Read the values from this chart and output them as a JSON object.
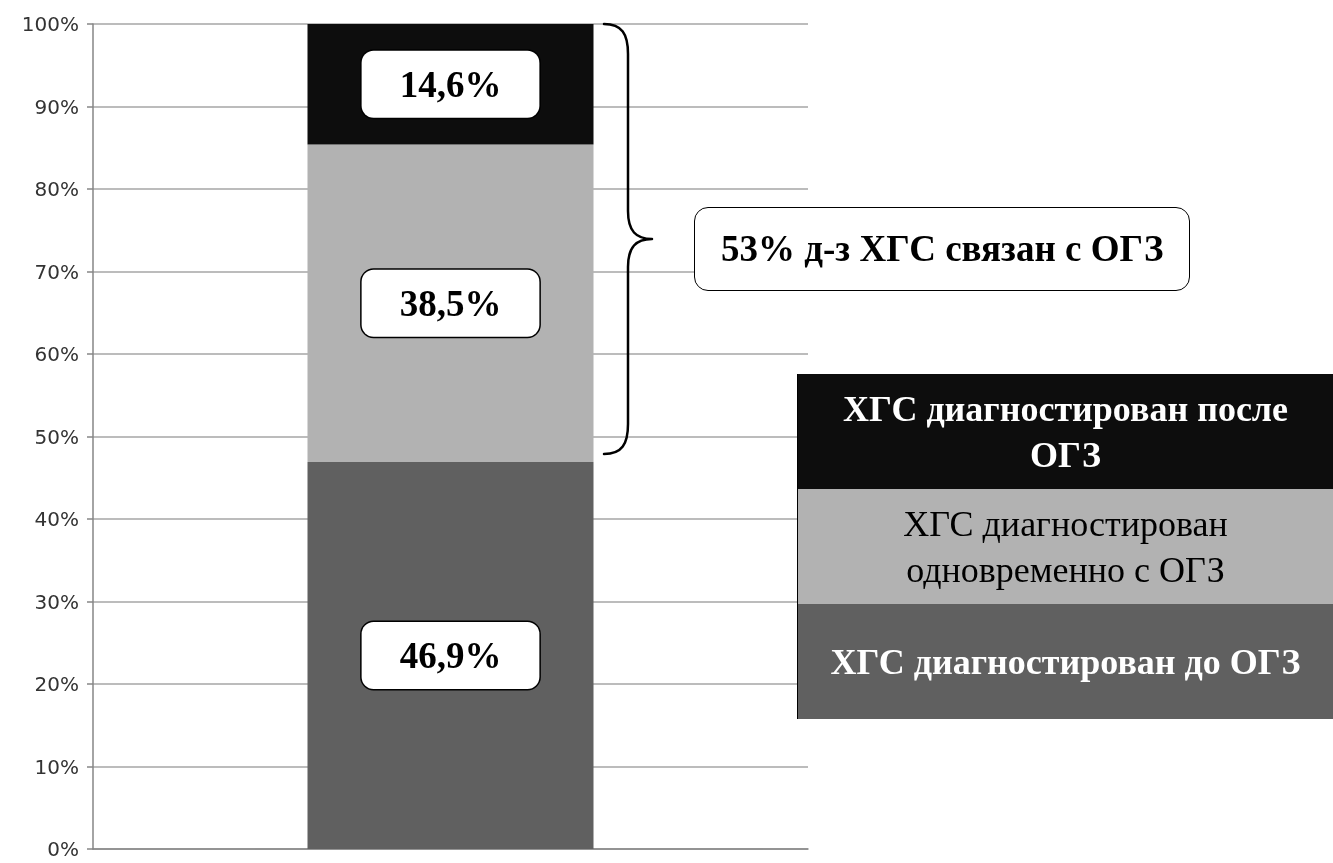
{
  "chart_data": {
    "type": "bar",
    "stacked": true,
    "categories": [
      null
    ],
    "series": [
      {
        "name": "ХГС диагностирован до ОГЗ",
        "color": "#606060",
        "values": [
          46.9
        ],
        "value_labels": [
          "46,9%"
        ]
      },
      {
        "name": "ХГС диагностирован одновременно с ОГЗ",
        "color": "#b2b2b2",
        "values": [
          38.5
        ],
        "value_labels": [
          "38,5%"
        ]
      },
      {
        "name": "ХГС диагностирован после ОГЗ",
        "color": "#0d0d0d",
        "values": [
          14.6
        ],
        "value_labels": [
          "14,6%"
        ]
      }
    ],
    "ylim": [
      0,
      100
    ],
    "yticks": [
      {
        "value": 0,
        "label": "0%"
      },
      {
        "value": 10,
        "label": "10%"
      },
      {
        "value": 20,
        "label": "20%"
      },
      {
        "value": 30,
        "label": "30%"
      },
      {
        "value": 40,
        "label": "40%"
      },
      {
        "value": 50,
        "label": "50%"
      },
      {
        "value": 60,
        "label": "60%"
      },
      {
        "value": 70,
        "label": "70%"
      },
      {
        "value": 80,
        "label": "80%"
      },
      {
        "value": 90,
        "label": "90%"
      },
      {
        "value": 100,
        "label": "100%"
      }
    ],
    "grid": "y",
    "legend": "right",
    "tick_labels": "y",
    "annotations": [
      "53% д-з ХГС связан с ОГЗ"
    ]
  }
}
